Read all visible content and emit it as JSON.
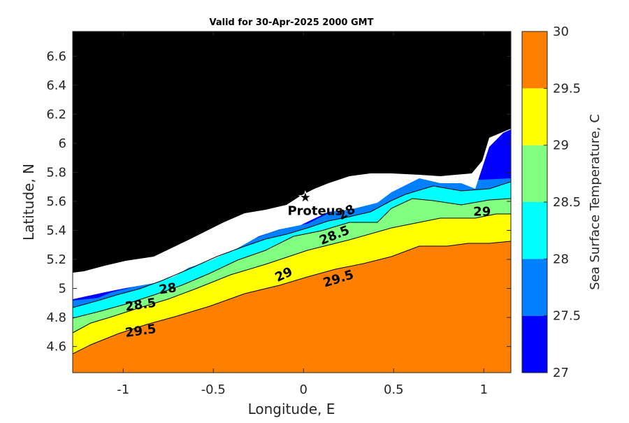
{
  "chart_data": {
    "type": "contour",
    "title": "Valid for 30-Apr-2025 2000 GMT",
    "xlabel": "Longitude, E",
    "ylabel": "Latitude, N",
    "xlim": [
      -1.28,
      1.15
    ],
    "ylim": [
      4.42,
      6.77
    ],
    "x_ticks": [
      -1,
      -0.5,
      0,
      0.5,
      1
    ],
    "x_tick_labels": [
      "-1",
      "-0.5",
      "0",
      "0.5",
      "1"
    ],
    "y_ticks": [
      4.6,
      4.8,
      5,
      5.2,
      5.4,
      5.6,
      5.8,
      6,
      6.2,
      6.4,
      6.6
    ],
    "y_tick_labels": [
      "4.6",
      "4.8",
      "5",
      "5.2",
      "5.4",
      "5.6",
      "5.8",
      "6",
      "6.2",
      "6.4",
      "6.6"
    ],
    "colorbar": {
      "label": "Sea Surface Temperature, C",
      "ticks": [
        "27",
        "27.5",
        "28",
        "28.5",
        "29",
        "29.5",
        "30"
      ],
      "levels": [
        27,
        27.5,
        28,
        28.5,
        29,
        29.5,
        30
      ],
      "colors": [
        "#0000ff",
        "#0080ff",
        "#00ffff",
        "#80ff80",
        "#ffff00",
        "#ff8000"
      ]
    },
    "land_color": "#000000",
    "nodata_color": "#ffffff",
    "contour_labels": [
      {
        "text": "28",
        "lon": -0.75,
        "lat": 4.97,
        "angle": -8
      },
      {
        "text": "28.5",
        "lon": -0.9,
        "lat": 4.86,
        "angle": -8
      },
      {
        "text": "29.5",
        "lon": -0.9,
        "lat": 4.68,
        "angle": -8
      },
      {
        "text": "29",
        "lon": -0.1,
        "lat": 5.07,
        "angle": -25
      },
      {
        "text": "29.5",
        "lon": 0.2,
        "lat": 5.04,
        "angle": -17
      },
      {
        "text": "28.5",
        "lon": 0.18,
        "lat": 5.34,
        "angle": -22
      },
      {
        "text": "28",
        "lon": 0.25,
        "lat": 5.5,
        "angle": -30
      },
      {
        "text": "29",
        "lon": 0.99,
        "lat": 5.5,
        "angle": 0
      }
    ],
    "station": {
      "name": "Proteus",
      "lon": 0.01,
      "lat": 5.63
    },
    "grid": false,
    "legend": "colorbar-right"
  }
}
